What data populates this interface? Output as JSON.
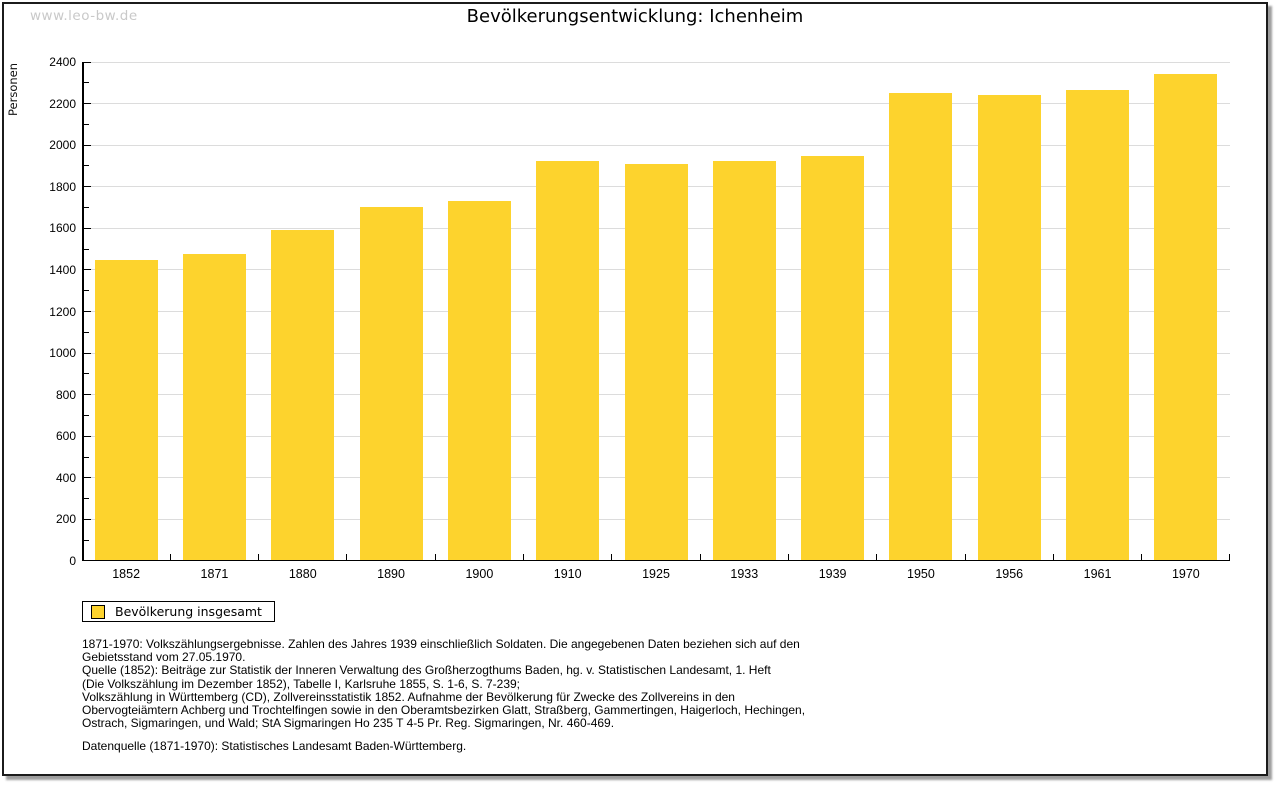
{
  "page": {
    "watermark": "www.leo-bw.de"
  },
  "chart_data": {
    "type": "bar",
    "title": "Bevölkerungsentwicklung: Ichenheim",
    "ylabel": "Personen",
    "xlabel": "",
    "ylim": [
      0,
      2400
    ],
    "ytick_major_step": 200,
    "ytick_minor_step": 100,
    "grid": true,
    "legend_position": "bottom-left",
    "bar_color": "#fdd32d",
    "series_name": "Bevölkerung insgesamt",
    "categories": [
      "1852",
      "1871",
      "1880",
      "1890",
      "1900",
      "1910",
      "1925",
      "1933",
      "1939",
      "1950",
      "1956",
      "1961",
      "1970"
    ],
    "values": [
      1440,
      1470,
      1585,
      1695,
      1725,
      1915,
      1900,
      1915,
      1940,
      2245,
      2235,
      2260,
      2335
    ]
  },
  "footer": {
    "lines": [
      "1871-1970: Volkszählungsergebnisse. Zahlen des Jahres 1939 einschließlich Soldaten. Die angegebenen Daten beziehen sich auf den",
      "Gebietsstand vom 27.05.1970.",
      "Quelle (1852): Beiträge zur Statistik der Inneren Verwaltung des Großherzogthums Baden, hg. v. Statistischen Landesamt, 1. Heft",
      "(Die Volkszählung im Dezember 1852), Tabelle I, Karlsruhe 1855, S. 1-6, S. 7-239;",
      "Volkszählung in Württemberg (CD), Zollvereinsstatistik 1852. Aufnahme der Bevölkerung für Zwecke des Zollvereins in den",
      "Obervogteiämtern Achberg und Trochtelfingen sowie in den Oberamtsbezirken Glatt, Straßberg, Gammertingen, Haigerloch, Hechingen,",
      "Ostrach, Sigmaringen, und Wald; StA Sigmaringen Ho 235 T 4-5 Pr. Reg. Sigmaringen, Nr. 460-469."
    ],
    "datenquelle": "Datenquelle (1871-1970): Statistisches Landesamt Baden-Württemberg."
  }
}
